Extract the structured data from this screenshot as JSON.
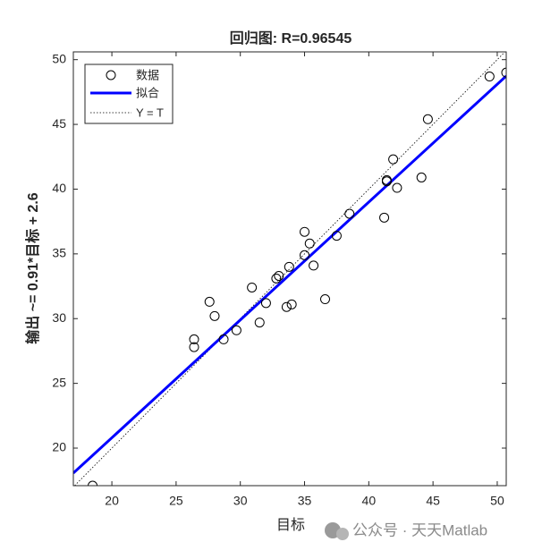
{
  "chart_data": {
    "type": "scatter",
    "title": "回归图: R=0.96545",
    "xlabel": "目标",
    "ylabel": "输出 ~= 0.91*目标 + 2.6",
    "xlim": [
      17.0,
      50.7
    ],
    "ylim": [
      17.1,
      50.6
    ],
    "xticks": [
      20,
      25,
      30,
      35,
      40,
      45,
      50
    ],
    "yticks": [
      20,
      25,
      30,
      35,
      40,
      45,
      50
    ],
    "series": [
      {
        "name": "数据",
        "color": "#000000",
        "x": [
          18.5,
          26.4,
          26.4,
          27.6,
          28.0,
          28.7,
          29.7,
          30.9,
          31.5,
          32.0,
          32.8,
          33.0,
          33.6,
          33.8,
          34.0,
          35.0,
          35.0,
          35.4,
          35.7,
          36.6,
          37.5,
          38.5,
          41.2,
          41.4,
          41.4,
          41.9,
          42.2,
          44.1,
          44.6,
          49.4,
          50.7
        ],
        "values": [
          17.1,
          28.4,
          27.8,
          31.3,
          30.2,
          28.4,
          29.1,
          32.4,
          29.7,
          31.2,
          33.1,
          33.3,
          30.9,
          34.0,
          31.1,
          36.7,
          34.9,
          35.8,
          34.1,
          31.5,
          36.4,
          38.1,
          37.8,
          40.7,
          40.6,
          42.3,
          40.1,
          40.9,
          45.4,
          48.7,
          49.0
        ]
      },
      {
        "name": "拟合",
        "color": "#0000ff",
        "slope": 0.91,
        "intercept": 2.6
      },
      {
        "name": "Y = T",
        "color": "#000000"
      }
    ]
  },
  "watermark": "公众号 · 天天Matlab"
}
